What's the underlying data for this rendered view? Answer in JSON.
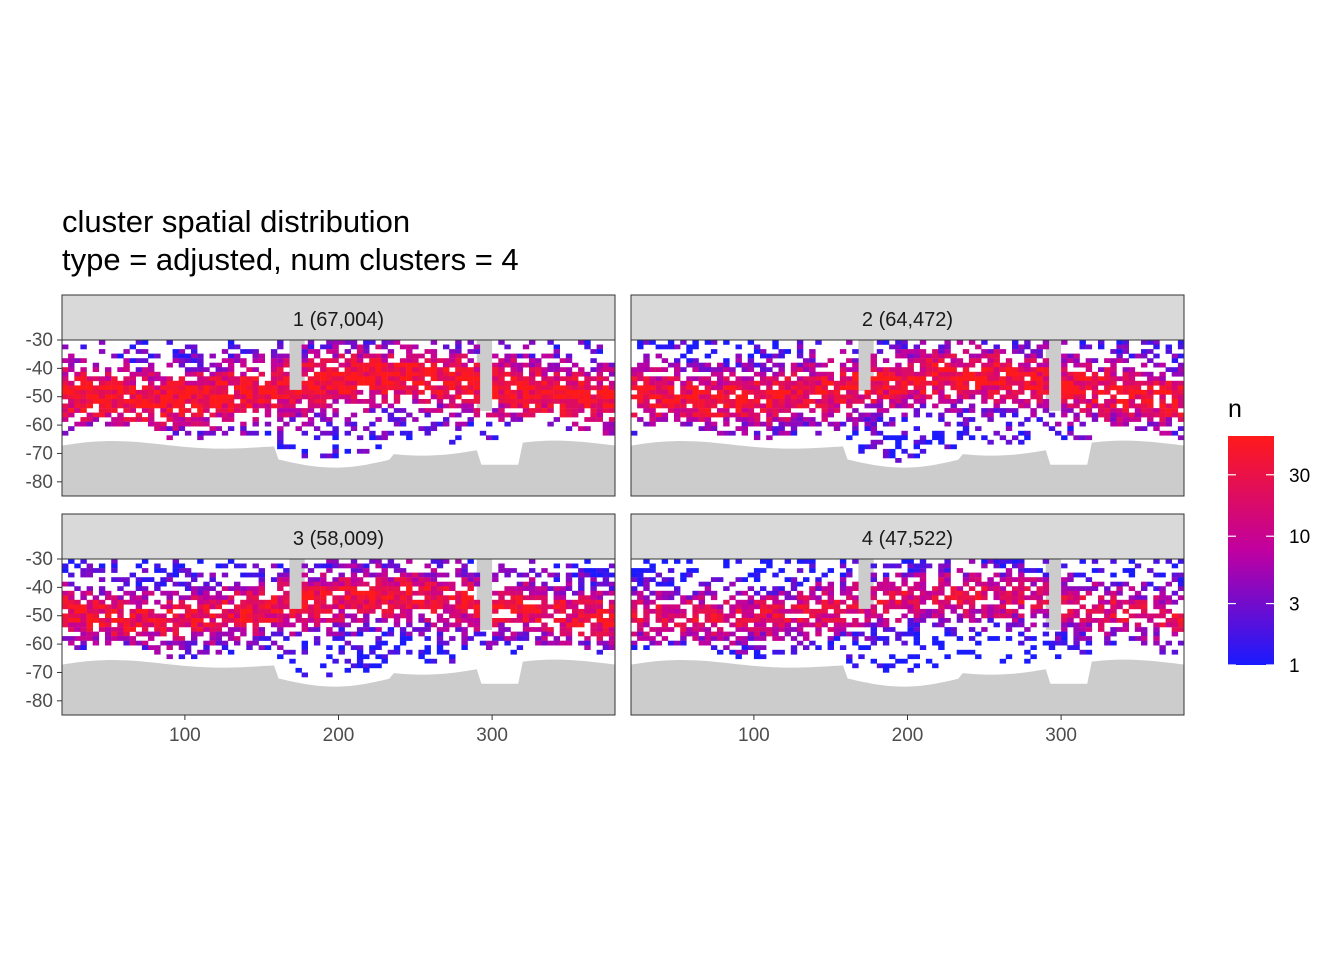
{
  "chart_data": {
    "type": "heatmap",
    "title": "cluster spatial distribution",
    "subtitle": "type = adjusted, num clusters = 4",
    "xlabel": "",
    "ylabel": "",
    "xlim": [
      20,
      380
    ],
    "ylim": [
      -85,
      -30
    ],
    "x_ticks": [
      100,
      200,
      300
    ],
    "x_tick_labels": [
      "100",
      "200",
      "300"
    ],
    "y_ticks": [
      -30,
      -40,
      -50,
      -60,
      -70,
      -80
    ],
    "y_tick_labels": [
      "-30",
      "-40",
      "-50",
      "-60",
      "-70",
      "-80"
    ],
    "panels": [
      {
        "label": "1 (67,004)",
        "cluster": 1,
        "count": 67004
      },
      {
        "label": "2 (64,472)",
        "cluster": 2,
        "count": 64472
      },
      {
        "label": "3 (58,009)",
        "cluster": 3,
        "count": 58009
      },
      {
        "label": "4 (47,522)",
        "cluster": 4,
        "count": 47522
      }
    ],
    "legend": {
      "title": "n",
      "scale": "log",
      "range": [
        1,
        60
      ],
      "breaks": [
        1,
        3,
        10,
        30
      ],
      "break_labels": [
        "1",
        "3",
        "10",
        "30"
      ],
      "low_color": "#1a1aff",
      "high_color": "#ff1a1a",
      "placement": "right"
    },
    "colors": {
      "land": "#cccccc",
      "strip": "#d9d9d9",
      "panel_border": "#333333",
      "ice_edge": "#ffffff"
    }
  }
}
